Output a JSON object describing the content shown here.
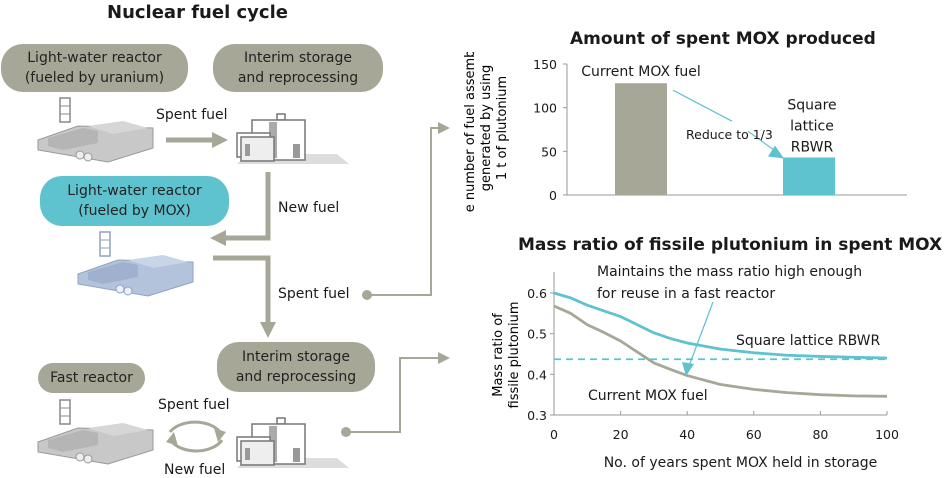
{
  "diagram": {
    "title": "Nuclear fuel cycle",
    "nodes": {
      "lwr_uranium": [
        "Light-water reactor",
        "(fueled by uranium)"
      ],
      "interim_1": [
        "Interim storage",
        "and reprocessing"
      ],
      "lwr_mox": [
        "Light-water reactor",
        "(fueled by MOX)"
      ],
      "interim_2": [
        "Interim storage",
        "and reprocessing"
      ],
      "fast_reactor": "Fast reactor"
    },
    "flow_labels": {
      "spent_fuel_1": "Spent fuel",
      "new_fuel_1": "New fuel",
      "spent_fuel_2": "Spent fuel",
      "spent_fuel_3": "Spent fuel",
      "new_fuel_2": "New fuel"
    },
    "colors": {
      "grey": "#a7a797",
      "blue": "#5fc2cf",
      "arrow": "#a7a797"
    }
  },
  "chart_data": [
    {
      "type": "bar",
      "title": "Amount of spent MOX produced",
      "ylabel": [
        "The number of fuel assemblies",
        "generated by using",
        "1 t of plutonium"
      ],
      "xlabel": "",
      "categories": [
        "Current MOX fuel",
        "Square lattice RBWR"
      ],
      "category_labels": [
        [
          "Current MOX fuel"
        ],
        [
          "Square",
          "lattice",
          "RBWR"
        ]
      ],
      "values": [
        128,
        43
      ],
      "colors": [
        "#a7a797",
        "#5fc2cf"
      ],
      "ylim": [
        0,
        150
      ],
      "yticks": [
        0,
        50,
        100,
        150
      ],
      "annotation": "Reduce to 1/3"
    },
    {
      "type": "line",
      "title": "Mass ratio of fissile plutonium in spent MOX",
      "ylabel": [
        "Mass ratio of",
        "fissile plutonium"
      ],
      "xlabel": "No. of years spent MOX held in storage",
      "xlim": [
        0,
        100
      ],
      "ylim": [
        0.3,
        0.6
      ],
      "xticks": [
        0,
        20,
        40,
        60,
        80,
        100
      ],
      "yticks": [
        0.3,
        0.4,
        0.5,
        0.6
      ],
      "series": [
        {
          "name": "Square lattice RBWR",
          "color": "#5fc2cf",
          "x": [
            0,
            5,
            10,
            15,
            20,
            25,
            30,
            35,
            40,
            50,
            60,
            70,
            80,
            90,
            100
          ],
          "y": [
            0.6,
            0.588,
            0.57,
            0.556,
            0.542,
            0.522,
            0.502,
            0.488,
            0.477,
            0.462,
            0.453,
            0.447,
            0.444,
            0.442,
            0.44
          ]
        },
        {
          "name": "Current MOX fuel",
          "color": "#a7a797",
          "x": [
            0,
            5,
            10,
            15,
            20,
            25,
            30,
            35,
            40,
            50,
            60,
            70,
            80,
            90,
            100
          ],
          "y": [
            0.568,
            0.55,
            0.522,
            0.503,
            0.482,
            0.455,
            0.428,
            0.412,
            0.397,
            0.375,
            0.363,
            0.355,
            0.35,
            0.347,
            0.346
          ]
        }
      ],
      "threshold": {
        "y": 0.437,
        "color": "#5fc2cf",
        "style": "dashed"
      },
      "annotation": [
        "Maintains the mass ratio high enough",
        "for reuse in a fast reactor"
      ]
    }
  ]
}
